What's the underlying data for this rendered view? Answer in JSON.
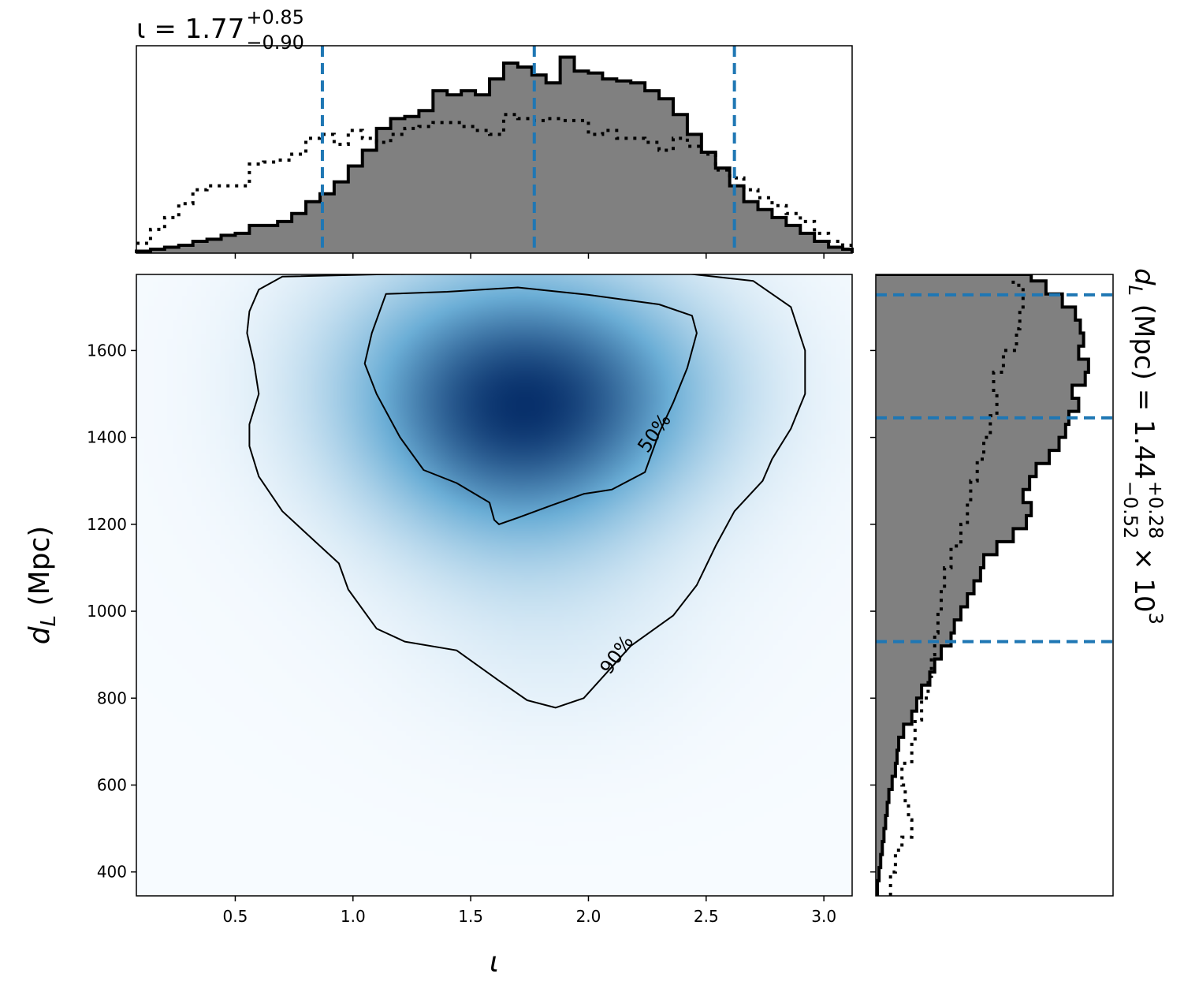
{
  "chart_data": [
    {
      "panel": "iota-marginal",
      "type": "histogram",
      "title": {
        "symbol": "ι",
        "eq": " = 1.77",
        "sup": "+0.85",
        "sub": "−0.90"
      },
      "xlim": [
        0.08,
        3.12
      ],
      "posterior": {
        "color": "#808080",
        "edge_color": "#000000",
        "bin_edges": [
          0.08,
          0.14,
          0.2,
          0.26,
          0.32,
          0.38,
          0.44,
          0.5,
          0.56,
          0.62,
          0.68,
          0.74,
          0.8,
          0.86,
          0.92,
          0.98,
          1.04,
          1.1,
          1.16,
          1.22,
          1.28,
          1.34,
          1.4,
          1.46,
          1.52,
          1.58,
          1.64,
          1.7,
          1.76,
          1.82,
          1.88,
          1.94,
          2.0,
          2.06,
          2.12,
          2.18,
          2.24,
          2.3,
          2.36,
          2.42,
          2.48,
          2.54,
          2.6,
          2.66,
          2.72,
          2.78,
          2.84,
          2.9,
          2.96,
          3.02,
          3.08,
          3.12
        ],
        "density": [
          0.01,
          0.02,
          0.03,
          0.04,
          0.06,
          0.07,
          0.09,
          0.1,
          0.14,
          0.14,
          0.16,
          0.2,
          0.26,
          0.3,
          0.36,
          0.44,
          0.52,
          0.63,
          0.68,
          0.69,
          0.72,
          0.82,
          0.8,
          0.82,
          0.8,
          0.88,
          0.96,
          0.94,
          0.9,
          0.86,
          0.99,
          0.92,
          0.91,
          0.88,
          0.87,
          0.86,
          0.82,
          0.78,
          0.7,
          0.6,
          0.51,
          0.43,
          0.34,
          0.26,
          0.22,
          0.18,
          0.14,
          0.1,
          0.06,
          0.03,
          0.02
        ]
      },
      "prior_line": {
        "style": "dotted",
        "x": [
          0.08,
          0.14,
          0.2,
          0.26,
          0.32,
          0.38,
          0.44,
          0.5,
          0.56,
          0.62,
          0.68,
          0.74,
          0.8,
          0.86,
          0.92,
          0.98,
          1.04,
          1.1,
          1.16,
          1.22,
          1.28,
          1.34,
          1.4,
          1.46,
          1.52,
          1.58,
          1.64,
          1.7,
          1.76,
          1.82,
          1.88,
          1.94,
          2.0,
          2.06,
          2.12,
          2.18,
          2.24,
          2.3,
          2.36,
          2.42,
          2.48,
          2.54,
          2.6,
          2.66,
          2.72,
          2.78,
          2.84,
          2.9,
          2.96,
          3.02,
          3.08,
          3.12
        ],
        "y": [
          0.05,
          0.12,
          0.18,
          0.25,
          0.32,
          0.34,
          0.34,
          0.34,
          0.45,
          0.46,
          0.47,
          0.5,
          0.58,
          0.6,
          0.55,
          0.62,
          0.58,
          0.56,
          0.6,
          0.63,
          0.64,
          0.66,
          0.66,
          0.64,
          0.62,
          0.6,
          0.7,
          0.68,
          0.67,
          0.68,
          0.67,
          0.67,
          0.6,
          0.62,
          0.58,
          0.58,
          0.56,
          0.52,
          0.58,
          0.54,
          0.5,
          0.42,
          0.38,
          0.32,
          0.28,
          0.24,
          0.2,
          0.16,
          0.1,
          0.06,
          0.04,
          0.03
        ]
      },
      "credible_lines": {
        "color": "#1f77b4",
        "values": [
          0.87,
          1.77,
          2.62
        ]
      }
    },
    {
      "panel": "joint-density",
      "type": "heatmap",
      "xlabel": "ι",
      "ylabel": {
        "base": "d",
        "sub": "L",
        "rest": " (Mpc)"
      },
      "xlim": [
        0.08,
        3.12
      ],
      "ylim": [
        345,
        1775
      ],
      "xticks": [
        0.5,
        1.0,
        1.5,
        2.0,
        2.5,
        3.0
      ],
      "xtick_labels": [
        "0.5",
        "1.0",
        "1.5",
        "2.0",
        "2.5",
        "3.0"
      ],
      "yticks": [
        400,
        600,
        800,
        1000,
        1200,
        1400,
        1600
      ],
      "ytick_labels": [
        "400",
        "600",
        "800",
        "1000",
        "1200",
        "1400",
        "1600"
      ],
      "colormap": {
        "low": "#f7fbff",
        "mid": "#6baed6",
        "high": "#08306b"
      },
      "peaks": [
        {
          "x": 1.45,
          "y": 1420,
          "w": 1.0
        },
        {
          "x": 1.7,
          "y": 1390,
          "w": 1.0
        },
        {
          "x": 2.15,
          "y": 1530,
          "w": 1.0
        },
        {
          "x": 1.75,
          "y": 1650,
          "w": 0.95
        },
        {
          "x": 1.3,
          "y": 1600,
          "w": 0.8
        },
        {
          "x": 1.95,
          "y": 1440,
          "w": 0.7
        },
        {
          "x": 1.75,
          "y": 1200,
          "w": 0.5
        },
        {
          "x": 1.85,
          "y": 900,
          "w": 0.25
        }
      ],
      "contours": [
        {
          "level": "50%",
          "label_at": {
            "x": 2.28,
            "y": 1410
          },
          "points": [
            [
              1.14,
              1730
            ],
            [
              1.4,
              1735
            ],
            [
              1.7,
              1745
            ],
            [
              2.0,
              1728
            ],
            [
              2.3,
              1706
            ],
            [
              2.44,
              1680
            ],
            [
              2.46,
              1640
            ],
            [
              2.42,
              1560
            ],
            [
              2.36,
              1480
            ],
            [
              2.3,
              1410
            ],
            [
              2.24,
              1320
            ],
            [
              2.1,
              1280
            ],
            [
              1.98,
              1270
            ],
            [
              1.85,
              1245
            ],
            [
              1.7,
              1215
            ],
            [
              1.62,
              1200
            ],
            [
              1.6,
              1210
            ],
            [
              1.58,
              1250
            ],
            [
              1.44,
              1295
            ],
            [
              1.3,
              1325
            ],
            [
              1.2,
              1400
            ],
            [
              1.1,
              1500
            ],
            [
              1.05,
              1570
            ],
            [
              1.08,
              1640
            ],
            [
              1.14,
              1730
            ]
          ]
        },
        {
          "level": "90%",
          "label_at": {
            "x": 2.12,
            "y": 900
          },
          "points": [
            [
              0.7,
              1770
            ],
            [
              1.1,
              1775
            ],
            [
              1.5,
              1778
            ],
            [
              2.0,
              1778
            ],
            [
              2.4,
              1778
            ],
            [
              2.7,
              1760
            ],
            [
              2.86,
              1700
            ],
            [
              2.92,
              1600
            ],
            [
              2.92,
              1500
            ],
            [
              2.86,
              1420
            ],
            [
              2.78,
              1350
            ],
            [
              2.74,
              1300
            ],
            [
              2.62,
              1230
            ],
            [
              2.54,
              1150
            ],
            [
              2.46,
              1060
            ],
            [
              2.36,
              990
            ],
            [
              2.18,
              920
            ],
            [
              2.08,
              860
            ],
            [
              1.98,
              800
            ],
            [
              1.86,
              778
            ],
            [
              1.74,
              795
            ],
            [
              1.62,
              840
            ],
            [
              1.44,
              910
            ],
            [
              1.22,
              930
            ],
            [
              1.1,
              960
            ],
            [
              0.98,
              1050
            ],
            [
              0.94,
              1110
            ],
            [
              0.84,
              1160
            ],
            [
              0.7,
              1230
            ],
            [
              0.6,
              1310
            ],
            [
              0.56,
              1380
            ],
            [
              0.56,
              1430
            ],
            [
              0.6,
              1500
            ],
            [
              0.58,
              1570
            ],
            [
              0.55,
              1640
            ],
            [
              0.56,
              1690
            ],
            [
              0.6,
              1740
            ],
            [
              0.7,
              1770
            ]
          ]
        }
      ]
    },
    {
      "panel": "dL-marginal",
      "type": "histogram",
      "orientation": "horizontal",
      "side_label": {
        "base": "d",
        "sub": "L",
        "eq": " (Mpc) = 1.44",
        "sup": "+0.28",
        "lower": "−0.52",
        "tail": " × 10",
        "exp": "3"
      },
      "ylim": [
        345,
        1775
      ],
      "yticks": [
        400,
        600,
        800,
        1000,
        1200,
        1400,
        1600
      ],
      "posterior": {
        "color": "#808080",
        "edge_color": "#000000",
        "bin_edges": [
          345,
          380,
          410,
          440,
          470,
          500,
          530,
          560,
          590,
          620,
          650,
          680,
          710,
          740,
          770,
          800,
          830,
          860,
          890,
          920,
          950,
          980,
          1010,
          1040,
          1070,
          1100,
          1130,
          1160,
          1190,
          1220,
          1250,
          1280,
          1310,
          1340,
          1370,
          1400,
          1430,
          1460,
          1490,
          1520,
          1550,
          1580,
          1610,
          1640,
          1670,
          1700,
          1730,
          1760,
          1775
        ],
        "density": [
          0.01,
          0.02,
          0.03,
          0.04,
          0.05,
          0.06,
          0.07,
          0.08,
          0.1,
          0.12,
          0.13,
          0.14,
          0.17,
          0.22,
          0.25,
          0.28,
          0.33,
          0.36,
          0.4,
          0.46,
          0.48,
          0.52,
          0.56,
          0.6,
          0.64,
          0.66,
          0.74,
          0.84,
          0.92,
          0.95,
          0.9,
          0.94,
          0.98,
          1.06,
          1.12,
          1.16,
          1.18,
          1.24,
          1.2,
          1.28,
          1.3,
          1.24,
          1.27,
          1.25,
          1.22,
          1.14,
          1.04,
          0.95
        ]
      },
      "prior_line": {
        "style": "dotted",
        "y": [
          345,
          400,
          450,
          480,
          520,
          560,
          600,
          650,
          700,
          750,
          800,
          850,
          900,
          950,
          1000,
          1050,
          1100,
          1150,
          1200,
          1250,
          1300,
          1350,
          1400,
          1450,
          1500,
          1550,
          1600,
          1650,
          1700,
          1750,
          1775
        ],
        "x": [
          0.09,
          0.12,
          0.16,
          0.22,
          0.2,
          0.18,
          0.16,
          0.22,
          0.24,
          0.28,
          0.32,
          0.34,
          0.36,
          0.38,
          0.4,
          0.42,
          0.46,
          0.52,
          0.56,
          0.58,
          0.62,
          0.66,
          0.7,
          0.74,
          0.72,
          0.78,
          0.86,
          0.88,
          0.9,
          0.84,
          0.82
        ]
      },
      "credible_lines": {
        "color": "#1f77b4",
        "values": [
          930,
          1445,
          1728
        ]
      }
    }
  ]
}
